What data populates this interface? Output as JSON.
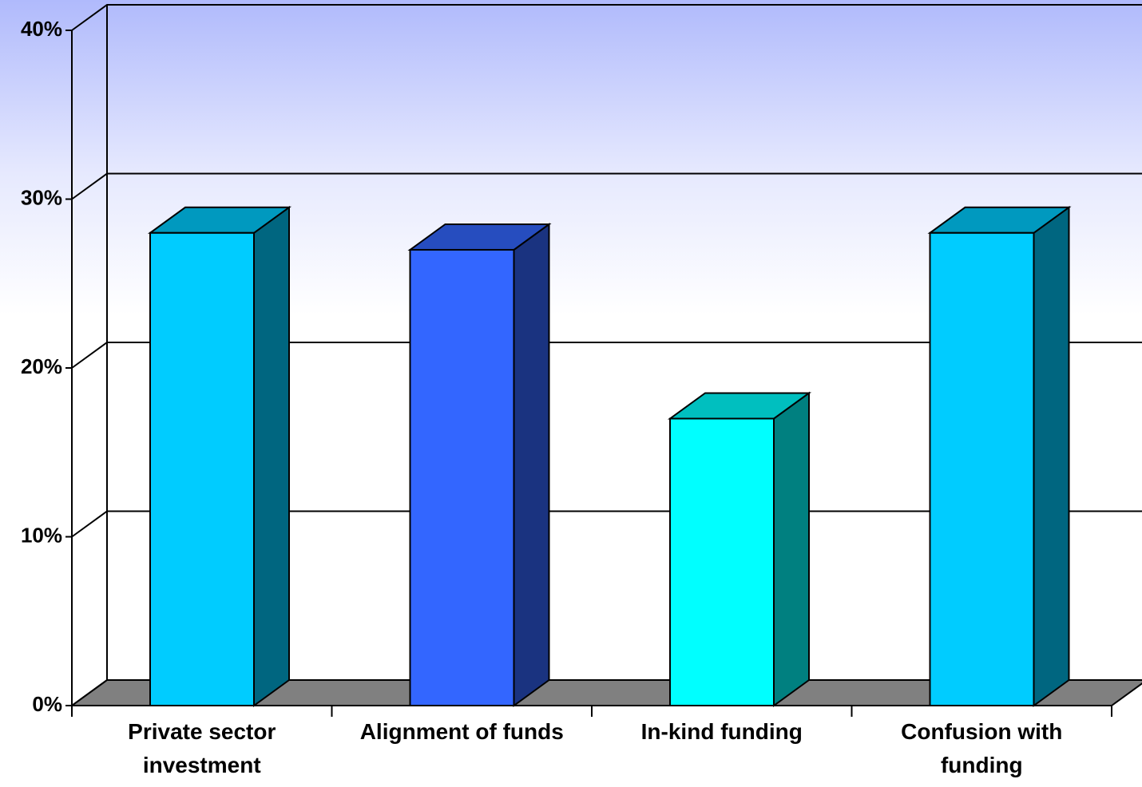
{
  "chart_data": {
    "type": "bar3d",
    "categories": [
      "Private sector\ninvestment",
      "Alignment of funds",
      "In-kind funding",
      "Confusion with\nfunding"
    ],
    "values": [
      28,
      27,
      17,
      28
    ],
    "colors": [
      "#00ccff",
      "#3366ff",
      "#00ffff",
      "#00ccff"
    ],
    "ylim": [
      0,
      40
    ],
    "yticks": [
      {
        "value": 0,
        "label": "0%"
      },
      {
        "value": 10,
        "label": "10%"
      },
      {
        "value": 20,
        "label": "20%"
      },
      {
        "value": 30,
        "label": "30%"
      },
      {
        "value": 40,
        "label": "40%"
      }
    ],
    "grid": true
  }
}
